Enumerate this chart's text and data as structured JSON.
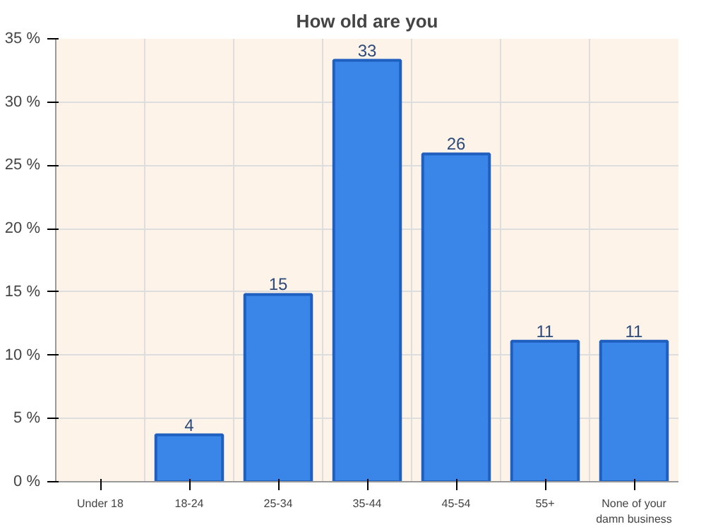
{
  "chart_data": {
    "type": "bar",
    "title": "How old are you",
    "categories": [
      "Under 18",
      "18-24",
      "25-34",
      "35-44",
      "45-54",
      "55+",
      "None of your damn business"
    ],
    "values": [
      0,
      3.7,
      14.8,
      33.3,
      25.9,
      11.1,
      11.1
    ],
    "value_labels": [
      null,
      "4",
      "15",
      "33",
      "26",
      "11",
      "11"
    ],
    "color": "#3a86e8",
    "ylim": [
      0,
      35
    ],
    "yticks": [
      {
        "value": 0,
        "label": "0 %"
      },
      {
        "value": 5,
        "label": "5 %"
      },
      {
        "value": 10,
        "label": "10 %"
      },
      {
        "value": 15,
        "label": "15 %"
      },
      {
        "value": 20,
        "label": "20 %"
      },
      {
        "value": 25,
        "label": "25 %"
      },
      {
        "value": 30,
        "label": "30 %"
      },
      {
        "value": 35,
        "label": "35 %"
      }
    ],
    "grid": true
  }
}
